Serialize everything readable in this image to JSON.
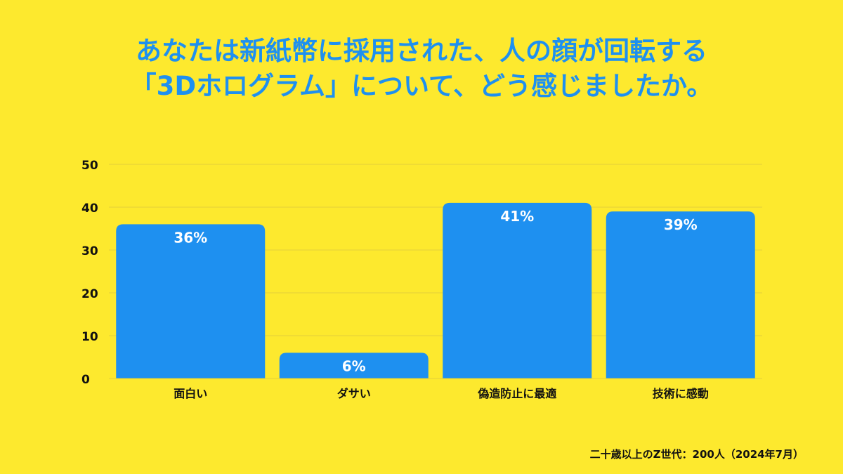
{
  "title_lines": [
    "あなたは新紙幣に採用された、人の顔が回転する",
    "「3Dホログラム」について、どう感じましたか。"
  ],
  "footnote": "二十歳以上のZ世代：200人（2024年7月）",
  "colors": {
    "background": "#FDE92E",
    "bar": "#1E90F0",
    "title": "#1E90F0",
    "label": "#FFFFFF",
    "gridline": "#E2CE3A"
  },
  "chart_data": {
    "type": "bar",
    "categories": [
      "面白い",
      "ダサい",
      "偽造防止に最適",
      "技術に感動"
    ],
    "values": [
      36,
      6,
      41,
      39
    ],
    "data_labels": [
      "36%",
      "6%",
      "41%",
      "39%"
    ],
    "ylim": [
      0,
      50
    ],
    "yticks": [
      "0",
      "10",
      "20",
      "30",
      "40",
      "50"
    ],
    "grid": true,
    "legend": "none"
  }
}
